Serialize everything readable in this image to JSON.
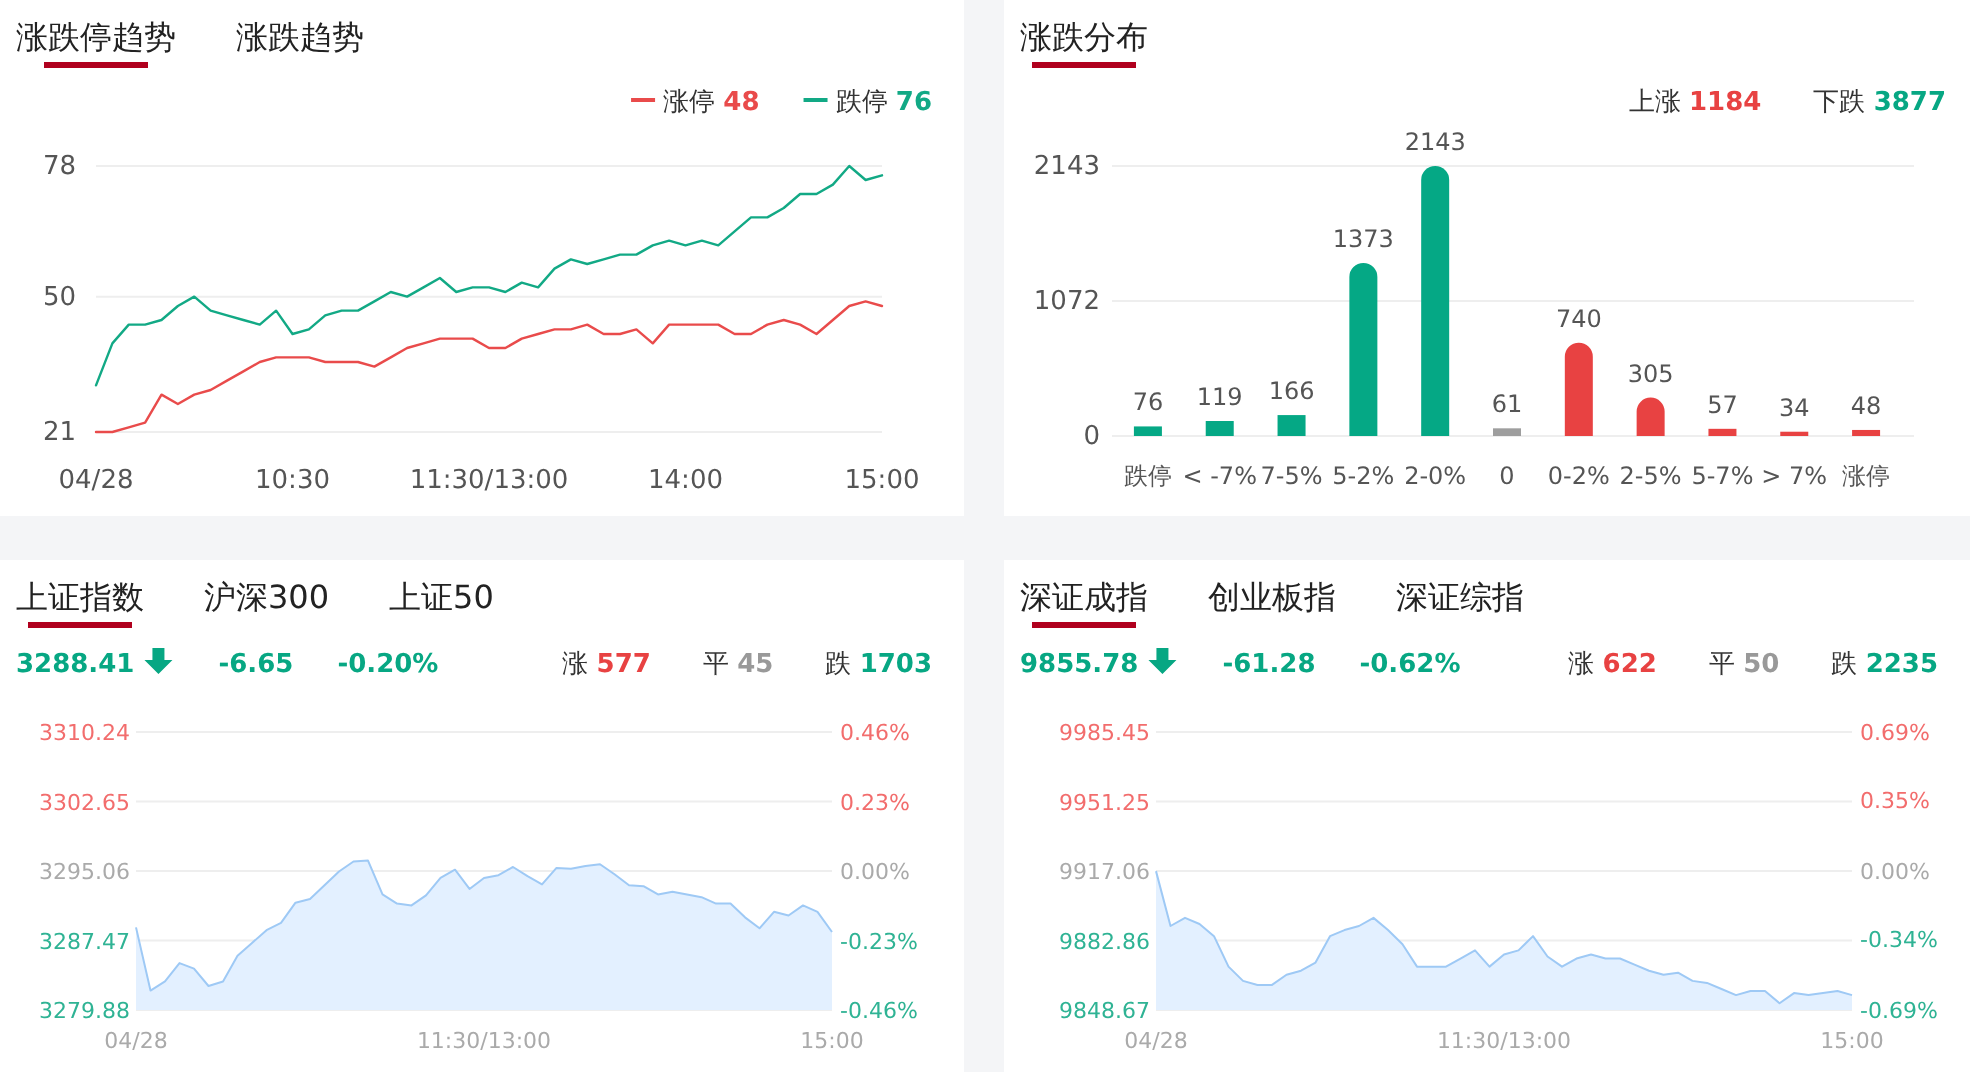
{
  "chart_data": [
    {
      "type": "line",
      "title": "涨跌停趋势",
      "subtitle": "涨跌趋势",
      "annotations": [
        "48",
        "76"
      ],
      "legend": "top right",
      "grid": "y",
      "categories": [
        "04/28",
        null,
        null,
        null,
        null,
        null,
        null,
        null,
        null,
        null,
        null,
        null,
        "10:30",
        null,
        null,
        null,
        null,
        null,
        null,
        null,
        null,
        null,
        null,
        null,
        "11:30/13:00",
        null,
        null,
        null,
        null,
        null,
        null,
        null,
        null,
        null,
        null,
        null,
        "14:00",
        null,
        null,
        null,
        null,
        null,
        null,
        null,
        null,
        null,
        null,
        null,
        "15:00"
      ],
      "ylim": [
        21,
        78
      ],
      "yticks": [
        21,
        50,
        78
      ],
      "series": [
        {
          "name": "涨停",
          "color": "#e94b4b",
          "values": [
            21,
            21,
            22,
            23,
            29,
            27,
            29,
            30,
            32,
            34,
            36,
            37,
            37,
            37,
            36,
            36,
            36,
            35,
            37,
            39,
            40,
            41,
            41,
            41,
            39,
            39,
            41,
            42,
            43,
            43,
            44,
            42,
            42,
            43,
            40,
            44,
            44,
            44,
            44,
            42,
            42,
            44,
            45,
            44,
            42,
            45,
            48,
            49,
            48
          ]
        },
        {
          "name": "跌停",
          "color": "#12a985",
          "values": [
            31,
            40,
            44,
            44,
            45,
            48,
            50,
            47,
            46,
            45,
            44,
            47,
            42,
            43,
            46,
            47,
            47,
            49,
            51,
            50,
            52,
            54,
            51,
            52,
            52,
            51,
            53,
            52,
            56,
            58,
            57,
            58,
            59,
            59,
            61,
            62,
            61,
            62,
            61,
            64,
            67,
            67,
            69,
            72,
            72,
            74,
            78,
            75,
            76
          ]
        }
      ]
    },
    {
      "type": "bar",
      "title": "涨跌分布",
      "annotations": [
        "上涨 1184",
        "下跌 3877"
      ],
      "grid": "y",
      "data_labels": true,
      "categories": [
        "跌停",
        "< -7%",
        "7-5%",
        "5-2%",
        "2-0%",
        "0",
        "0-2%",
        "2-5%",
        "5-7%",
        "> 7%",
        "涨停"
      ],
      "values": [
        76,
        119,
        166,
        1373,
        2143,
        61,
        740,
        305,
        57,
        34,
        48
      ],
      "colors": [
        "#05a885",
        "#05a885",
        "#05a885",
        "#05a885",
        "#05a885",
        "#9e9e9e",
        "#e84242",
        "#e84242",
        "#e84242",
        "#e84242",
        "#e84242"
      ],
      "ylim": [
        0,
        2143
      ],
      "yticks": [
        0,
        1072,
        2143
      ]
    },
    {
      "type": "area",
      "title": "上证指数",
      "annotations": [
        "沪深300",
        "上证50",
        "3288.41",
        "-6.65",
        "-0.20%",
        "涨 577",
        "平 45",
        "跌 1703"
      ],
      "grid": "y",
      "categories": [
        "04/28",
        null,
        null,
        null,
        null,
        null,
        null,
        null,
        null,
        null,
        null,
        null,
        null,
        null,
        null,
        null,
        null,
        null,
        null,
        null,
        null,
        null,
        null,
        null,
        "11:30/13:00",
        null,
        null,
        null,
        null,
        null,
        null,
        null,
        null,
        null,
        null,
        null,
        null,
        null,
        null,
        null,
        null,
        null,
        null,
        null,
        null,
        null,
        null,
        null,
        "15:00"
      ],
      "ylim": [
        3279.88,
        3310.24
      ],
      "yticks": [
        3279.88,
        3287.47,
        3295.06,
        3302.65,
        3310.24
      ],
      "y2lim": [
        -0.46,
        0.46
      ],
      "y2ticks": [
        {
          "value": -0.46,
          "label": "-0.46%"
        },
        {
          "value": -0.23,
          "label": "-0.23%"
        },
        {
          "value": 0,
          "label": "0.00%"
        },
        {
          "value": 0.23,
          "label": "0.23%"
        },
        {
          "value": 0.46,
          "label": "0.46%"
        }
      ],
      "series": [
        {
          "color": "#9ec9f5",
          "values": [
            3288.9,
            3282.0,
            3283.0,
            3285.0,
            3284.4,
            3282.5,
            3283.0,
            3285.8,
            3287.2,
            3288.6,
            3289.4,
            3291.6,
            3292.0,
            3293.5,
            3295.0,
            3296.1,
            3296.2,
            3292.5,
            3291.5,
            3291.3,
            3292.4,
            3294.3,
            3295.2,
            3293.1,
            3294.3,
            3294.6,
            3295.5,
            3294.5,
            3293.6,
            3295.4,
            3295.3,
            3295.6,
            3295.8,
            3294.7,
            3293.5,
            3293.4,
            3292.5,
            3292.8,
            3292.5,
            3292.2,
            3291.5,
            3291.5,
            3290.0,
            3288.8,
            3290.6,
            3290.2,
            3291.3,
            3290.6,
            3288.4
          ]
        }
      ]
    },
    {
      "type": "area",
      "title": "深证成指",
      "annotations": [
        "创业板指",
        "深证综指",
        "9855.78",
        "-61.28",
        "-0.62%",
        "涨 622",
        "平 50",
        "跌 2235"
      ],
      "grid": "y",
      "categories": [
        "04/28",
        null,
        null,
        null,
        null,
        null,
        null,
        null,
        null,
        null,
        null,
        null,
        null,
        null,
        null,
        null,
        null,
        null,
        null,
        null,
        null,
        null,
        null,
        null,
        "11:30/13:00",
        null,
        null,
        null,
        null,
        null,
        null,
        null,
        null,
        null,
        null,
        null,
        null,
        null,
        null,
        null,
        null,
        null,
        null,
        null,
        null,
        null,
        null,
        null,
        "15:00"
      ],
      "ylim": [
        9848.67,
        9985.45
      ],
      "yticks": [
        9848.67,
        9882.86,
        9917.06,
        9951.25,
        9985.45
      ],
      "y2lim": [
        -0.69,
        0.69
      ],
      "y2ticks": [
        {
          "value": -0.69,
          "label": "-0.69%"
        },
        {
          "value": -0.34,
          "label": "-0.34%"
        },
        {
          "value": 0,
          "label": "0.00%"
        },
        {
          "value": 0.35,
          "label": "0.35%"
        },
        {
          "value": 0.69,
          "label": "0.69%"
        }
      ],
      "series": [
        {
          "color": "#9ec9f5",
          "values": [
            9917,
            9890,
            9894,
            9891,
            9885,
            9870,
            9863,
            9861,
            9861,
            9866,
            9868,
            9872,
            9885,
            9888,
            9890,
            9894,
            9888,
            9881,
            9870,
            9870,
            9870,
            9874,
            9878,
            9870,
            9876,
            9878,
            9885,
            9875,
            9870,
            9874,
            9876,
            9874,
            9874,
            9871,
            9868,
            9866,
            9867,
            9863,
            9862,
            9859,
            9856,
            9858,
            9858,
            9852,
            9857,
            9856,
            9857,
            9858,
            9856
          ]
        }
      ]
    }
  ]
}
